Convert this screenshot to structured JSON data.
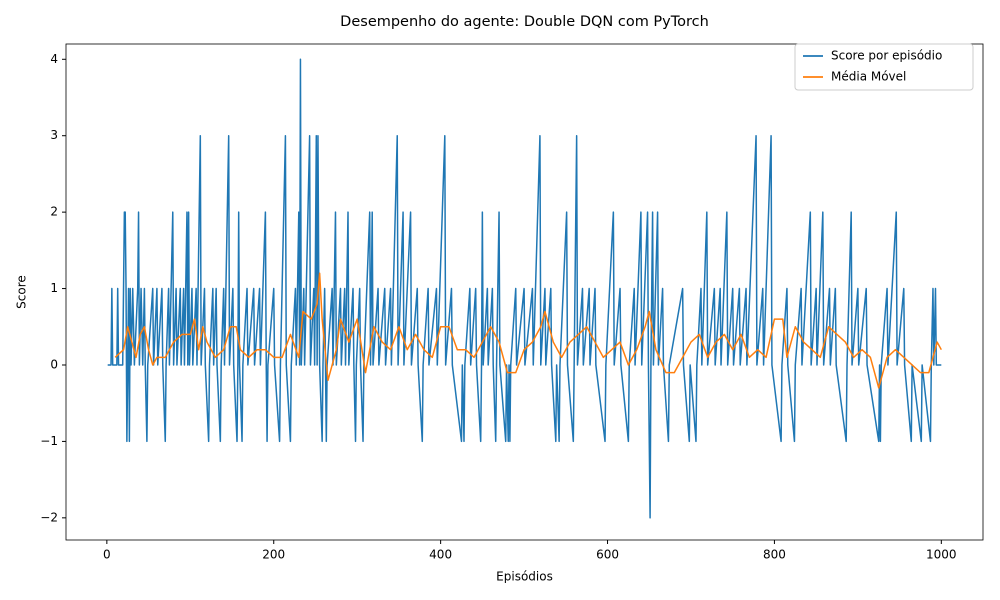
{
  "chart_data": {
    "type": "line",
    "title": "Desempenho do agente: Double DQN com PyTorch",
    "x_label": "Episódios",
    "y_label": "Score",
    "xlim": [
      -48.95,
      1049.95
    ],
    "ylim": [
      -2.29,
      4.2
    ],
    "xticks": [
      0,
      200,
      400,
      600,
      800,
      1000
    ],
    "yticks": [
      {
        "value": -2,
        "label": "−2"
      },
      {
        "value": -1,
        "label": "−1"
      },
      0,
      1,
      2,
      3,
      4
    ],
    "grid": false,
    "legend": "upper right",
    "series": [
      {
        "name": "Score por episódio",
        "color": "#1f77b4",
        "x": [
          1,
          5,
          6,
          7,
          12,
          13,
          14,
          19,
          20,
          21,
          22,
          23,
          24,
          25,
          26,
          27,
          28,
          29,
          31,
          33,
          37,
          38,
          39,
          41,
          43,
          45,
          46,
          48,
          49,
          55,
          56,
          60,
          61,
          66,
          67,
          70,
          71,
          74,
          75,
          79,
          80,
          83,
          84,
          88,
          89,
          92,
          93,
          96,
          97,
          98,
          99,
          102,
          103,
          107,
          108,
          112,
          113,
          117,
          118,
          122,
          123,
          127,
          128,
          131,
          132,
          136,
          137,
          140,
          141,
          146,
          147,
          151,
          152,
          156,
          157,
          158,
          159,
          162,
          163,
          168,
          169,
          176,
          177,
          183,
          184,
          190,
          191,
          192,
          193,
          200,
          201,
          207,
          208,
          214,
          215,
          220,
          221,
          226,
          227,
          230,
          231,
          232,
          233,
          236,
          237,
          243,
          244,
          248,
          249,
          251,
          252,
          253,
          254,
          255,
          258,
          259,
          261,
          262,
          263,
          264,
          270,
          271,
          274,
          275,
          280,
          281,
          285,
          286,
          289,
          290,
          295,
          296,
          298,
          299,
          303,
          304,
          307,
          308,
          315,
          316,
          318,
          319,
          325,
          326,
          333,
          334,
          340,
          341,
          348,
          349,
          355,
          356,
          364,
          365,
          372,
          373,
          378,
          379,
          385,
          386,
          395,
          396,
          405,
          406,
          413,
          414,
          425,
          426,
          428,
          429,
          435,
          436,
          442,
          443,
          448,
          449,
          450,
          451,
          456,
          457,
          462,
          463,
          466,
          467,
          470,
          471,
          478,
          479,
          481,
          482,
          483,
          484,
          490,
          491,
          500,
          501,
          510,
          511,
          519,
          520,
          525,
          526,
          532,
          533,
          538,
          539,
          542,
          543,
          551,
          552,
          559,
          560,
          563,
          564,
          570,
          571,
          578,
          579,
          585,
          586,
          597,
          598,
          607,
          608,
          615,
          616,
          625,
          626,
          632,
          633,
          640,
          641,
          648,
          649,
          651,
          652,
          654,
          655,
          660,
          661,
          666,
          667,
          673,
          674,
          690,
          691,
          698,
          699,
          706,
          707,
          712,
          713,
          719,
          720,
          728,
          729,
          735,
          736,
          743,
          744,
          750,
          751,
          758,
          759,
          766,
          767,
          778,
          779,
          786,
          787,
          796,
          797,
          808,
          809,
          815,
          816,
          824,
          825,
          832,
          833,
          843,
          844,
          850,
          851,
          858,
          859,
          866,
          867,
          873,
          874,
          886,
          887,
          892,
          893,
          900,
          901,
          910,
          911,
          925,
          926,
          927,
          928,
          935,
          936,
          946,
          947,
          955,
          956,
          964,
          965,
          976,
          977,
          987,
          988,
          990,
          991,
          993,
          994,
          1000
        ],
        "values": [
          0,
          0,
          1,
          0,
          0,
          1,
          0,
          0,
          1,
          2,
          2,
          1,
          -1,
          0,
          1,
          -1,
          1,
          0,
          1,
          0,
          1,
          2,
          0,
          1,
          0,
          1,
          0,
          -1,
          0,
          1,
          0,
          1,
          0,
          1,
          0,
          -1,
          0,
          1,
          0,
          2,
          0,
          1,
          0,
          1,
          0,
          1,
          0,
          2,
          0,
          2,
          0,
          1,
          0,
          1,
          0,
          3,
          0,
          1,
          0,
          -1,
          0,
          1,
          0,
          1,
          0,
          -1,
          0,
          1,
          0,
          3,
          0,
          1,
          0,
          -1,
          0,
          2,
          0,
          -1,
          0,
          1,
          0,
          1,
          0,
          1,
          0,
          2,
          0,
          -1,
          0,
          1,
          0,
          -1,
          0,
          3,
          0,
          -1,
          0,
          1,
          0,
          2,
          0,
          4,
          0,
          1,
          0,
          3,
          0,
          1,
          0,
          3,
          0,
          3,
          1,
          0,
          -1,
          0,
          1,
          0,
          -1,
          0,
          1,
          0,
          2,
          0,
          1,
          0,
          1,
          0,
          2,
          0,
          1,
          0,
          -1,
          0,
          1,
          0,
          -1,
          0,
          2,
          0,
          2,
          0,
          1,
          0,
          1,
          0,
          1,
          0,
          3,
          0,
          2,
          0,
          2,
          0,
          1,
          0,
          -1,
          0,
          1,
          0,
          1,
          0,
          3,
          0,
          1,
          0,
          -1,
          0,
          -1,
          0,
          1,
          0,
          1,
          0,
          -1,
          0,
          2,
          0,
          1,
          0,
          1,
          0,
          -1,
          0,
          2,
          0,
          -1,
          0,
          -1,
          0,
          -1,
          0,
          1,
          0,
          1,
          0,
          1,
          0,
          3,
          0,
          1,
          0,
          1,
          0,
          -1,
          0,
          -1,
          0,
          2,
          0,
          -1,
          0,
          3,
          0,
          1,
          0,
          1,
          0,
          1,
          0,
          -1,
          0,
          2,
          0,
          1,
          0,
          -1,
          0,
          1,
          0,
          2,
          0,
          2,
          0,
          -2,
          0,
          2,
          0,
          2,
          0,
          1,
          0,
          -1,
          0,
          1,
          0,
          -1,
          0,
          -1,
          0,
          1,
          0,
          2,
          0,
          1,
          0,
          1,
          0,
          2,
          0,
          1,
          0,
          1,
          0,
          1,
          0,
          3,
          0,
          1,
          0,
          3,
          0,
          -1,
          0,
          1,
          0,
          -1,
          0,
          1,
          0,
          2,
          0,
          1,
          0,
          2,
          0,
          1,
          0,
          1,
          0,
          -1,
          0,
          2,
          0,
          1,
          0,
          1,
          0,
          -1,
          0,
          -1,
          0,
          1,
          0,
          2,
          0,
          1,
          0,
          -1,
          0,
          -1,
          0,
          -1,
          0,
          1,
          0,
          1,
          0,
          0
        ]
      },
      {
        "name": "Média Móvel",
        "color": "#ff7f0e",
        "x": [
          10,
          20,
          25,
          30,
          35,
          40,
          45,
          50,
          55,
          60,
          70,
          80,
          90,
          100,
          105,
          110,
          115,
          120,
          130,
          140,
          148,
          155,
          160,
          170,
          180,
          190,
          200,
          210,
          220,
          230,
          235,
          245,
          252,
          255,
          258,
          265,
          275,
          280,
          290,
          300,
          310,
          320,
          330,
          340,
          350,
          360,
          370,
          380,
          390,
          400,
          410,
          420,
          430,
          440,
          450,
          460,
          470,
          480,
          490,
          500,
          510,
          520,
          525,
          535,
          545,
          555,
          565,
          575,
          585,
          595,
          605,
          615,
          625,
          635,
          645,
          650,
          658,
          670,
          680,
          690,
          700,
          710,
          720,
          730,
          740,
          750,
          760,
          770,
          780,
          790,
          800,
          810,
          815,
          825,
          835,
          845,
          855,
          865,
          875,
          885,
          895,
          905,
          915,
          925,
          935,
          945,
          955,
          965,
          975,
          985,
          995,
          1000
        ],
        "values": [
          0.1,
          0.2,
          0.5,
          0.3,
          0.1,
          0.4,
          0.5,
          0.2,
          0,
          0.1,
          0.1,
          0.3,
          0.4,
          0.4,
          0.6,
          0.2,
          0.5,
          0.3,
          0.1,
          0.2,
          0.5,
          0.5,
          0.2,
          0.1,
          0.2,
          0.2,
          0.1,
          0.1,
          0.4,
          0.1,
          0.7,
          0.6,
          0.8,
          1.2,
          0.6,
          -0.2,
          0.2,
          0.6,
          0.3,
          0.6,
          -0.1,
          0.5,
          0.3,
          0.2,
          0.5,
          0.2,
          0.4,
          0.2,
          0.1,
          0.5,
          0.5,
          0.2,
          0.2,
          0.1,
          0.3,
          0.5,
          0.3,
          -0.1,
          -0.1,
          0.2,
          0.3,
          0.5,
          0.7,
          0.3,
          0.1,
          0.3,
          0.4,
          0.5,
          0.3,
          0.1,
          0.2,
          0.3,
          0,
          0.2,
          0.5,
          0.7,
          0.2,
          -0.1,
          -0.1,
          0.1,
          0.3,
          0.4,
          0.1,
          0.3,
          0.4,
          0.2,
          0.4,
          0.1,
          0.2,
          0.1,
          0.6,
          0.6,
          0.1,
          0.5,
          0.3,
          0.2,
          0.1,
          0.5,
          0.4,
          0.3,
          0.1,
          0.2,
          0.1,
          -0.3,
          0.1,
          0.2,
          0.1,
          0,
          -0.1,
          -0.1,
          0.3,
          0.2
        ]
      }
    ]
  }
}
